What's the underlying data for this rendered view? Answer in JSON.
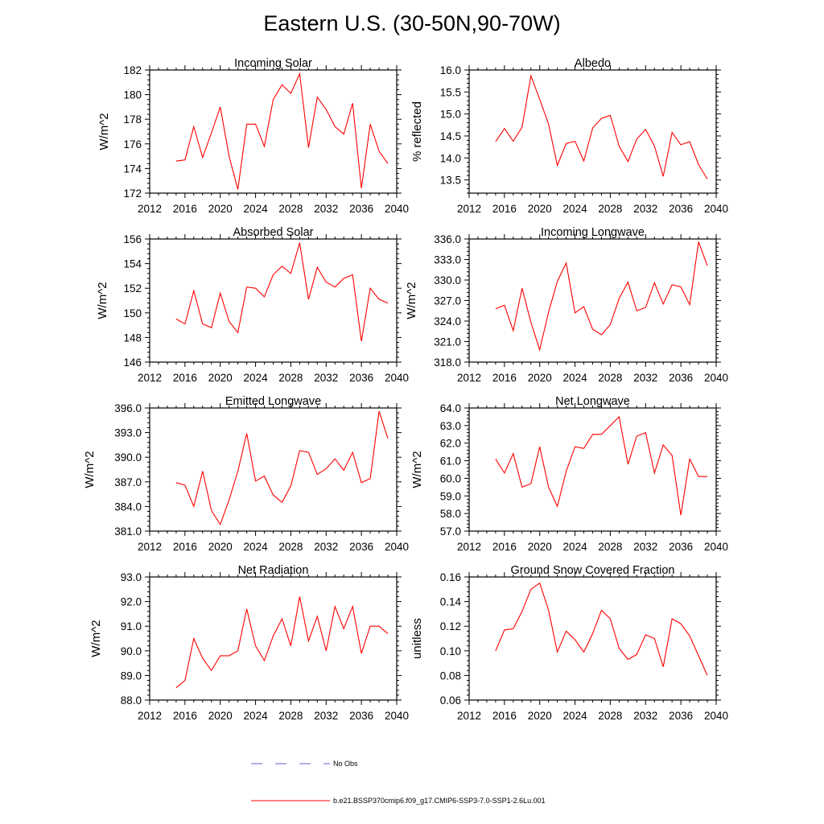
{
  "title": "Eastern U.S. (30-50N,90-70W)",
  "colors": {
    "model_line": "#ff0000",
    "obs_line": "#6060d0",
    "axis": "#000000"
  },
  "legend": {
    "obs_label": "No Obs",
    "model_label": "b.e21.BSSP370cmip6.f09_g17.CMIP6-SSP3-7.0-SSP1-2.6Lu.001"
  },
  "chart_data": [
    {
      "type": "line",
      "title": "Incoming Solar",
      "xlabel": "",
      "ylabel": "W/m^2",
      "xlim": [
        2012,
        2040
      ],
      "xticks": [
        2012,
        2016,
        2020,
        2024,
        2028,
        2032,
        2036,
        2040
      ],
      "ylim": [
        172,
        182
      ],
      "yticks": [
        "172",
        "174",
        "176",
        "178",
        "180",
        "182"
      ],
      "ytick_values": [
        172,
        174,
        176,
        178,
        180,
        182
      ],
      "x": [
        2015,
        2016,
        2017,
        2018,
        2019,
        2020,
        2021,
        2022,
        2023,
        2024,
        2025,
        2026,
        2027,
        2028,
        2029,
        2030,
        2031,
        2032,
        2033,
        2034,
        2035,
        2036,
        2037,
        2038,
        2039
      ],
      "series": [
        {
          "name": "b.e21.BSSP370cmip6.f09_g17.CMIP6-SSP3-7.0-SSP1-2.6Lu.001",
          "values": [
            174.6,
            174.7,
            177.4,
            174.9,
            176.9,
            179.0,
            175.0,
            172.3,
            177.6,
            177.6,
            175.8,
            179.6,
            180.8,
            180.1,
            181.7,
            175.7,
            179.8,
            178.8,
            177.4,
            176.8,
            179.3,
            172.4,
            177.6,
            175.4,
            174.4
          ]
        }
      ]
    },
    {
      "type": "line",
      "title": "Albedo",
      "xlabel": "",
      "ylabel": "% reflected",
      "xlim": [
        2012,
        2040
      ],
      "xticks": [
        2012,
        2016,
        2020,
        2024,
        2028,
        2032,
        2036,
        2040
      ],
      "ylim": [
        13.2,
        16.0
      ],
      "yticks": [
        "13.5",
        "14.0",
        "14.5",
        "15.0",
        "15.5",
        "16.0"
      ],
      "ytick_values": [
        13.5,
        14.0,
        14.5,
        15.0,
        15.5,
        16.0
      ],
      "x": [
        2015,
        2016,
        2017,
        2018,
        2019,
        2020,
        2021,
        2022,
        2023,
        2024,
        2025,
        2026,
        2027,
        2028,
        2029,
        2030,
        2031,
        2032,
        2033,
        2034,
        2035,
        2036,
        2037,
        2038,
        2039
      ],
      "series": [
        {
          "name": "b.e21.BSSP370cmip6.f09_g17.CMIP6-SSP3-7.0-SSP1-2.6Lu.001",
          "values": [
            14.37,
            14.67,
            14.38,
            14.7,
            15.87,
            15.33,
            14.77,
            13.83,
            14.33,
            14.38,
            13.93,
            14.68,
            14.9,
            14.97,
            14.27,
            13.92,
            14.43,
            14.65,
            14.27,
            13.58,
            14.58,
            14.3,
            14.37,
            13.85,
            13.52
          ]
        }
      ]
    },
    {
      "type": "line",
      "title": "Absorbed Solar",
      "xlabel": "",
      "ylabel": "W/m^2",
      "xlim": [
        2012,
        2040
      ],
      "xticks": [
        2012,
        2016,
        2020,
        2024,
        2028,
        2032,
        2036,
        2040
      ],
      "ylim": [
        146,
        156
      ],
      "yticks": [
        "146",
        "148",
        "150",
        "152",
        "154",
        "156"
      ],
      "ytick_values": [
        146,
        148,
        150,
        152,
        154,
        156
      ],
      "x": [
        2015,
        2016,
        2017,
        2018,
        2019,
        2020,
        2021,
        2022,
        2023,
        2024,
        2025,
        2026,
        2027,
        2028,
        2029,
        2030,
        2031,
        2032,
        2033,
        2034,
        2035,
        2036,
        2037,
        2038,
        2039
      ],
      "series": [
        {
          "name": "b.e21.BSSP370cmip6.f09_g17.CMIP6-SSP3-7.0-SSP1-2.6Lu.001",
          "values": [
            149.5,
            149.1,
            151.8,
            149.1,
            148.8,
            151.6,
            149.3,
            148.4,
            152.1,
            152.0,
            151.3,
            153.1,
            153.8,
            153.2,
            155.7,
            151.1,
            153.7,
            152.5,
            152.1,
            152.8,
            153.1,
            147.7,
            152.0,
            151.1,
            150.8
          ]
        }
      ]
    },
    {
      "type": "line",
      "title": "Incoming Longwave",
      "xlabel": "",
      "ylabel": "W/m^2",
      "xlim": [
        2012,
        2040
      ],
      "xticks": [
        2012,
        2016,
        2020,
        2024,
        2028,
        2032,
        2036,
        2040
      ],
      "ylim": [
        318,
        336
      ],
      "yticks": [
        "318.0",
        "321.0",
        "324.0",
        "327.0",
        "330.0",
        "333.0",
        "336.0"
      ],
      "ytick_values": [
        318,
        321,
        324,
        327,
        330,
        333,
        336
      ],
      "x": [
        2015,
        2016,
        2017,
        2018,
        2019,
        2020,
        2021,
        2022,
        2023,
        2024,
        2025,
        2026,
        2027,
        2028,
        2029,
        2030,
        2031,
        2032,
        2033,
        2034,
        2035,
        2036,
        2037,
        2038,
        2039
      ],
      "series": [
        {
          "name": "b.e21.BSSP370cmip6.f09_g17.CMIP6-SSP3-7.0-SSP1-2.6Lu.001",
          "values": [
            325.8,
            326.3,
            322.6,
            328.8,
            323.8,
            319.8,
            325.3,
            329.8,
            332.5,
            325.2,
            326.1,
            322.8,
            322.0,
            323.5,
            327.3,
            329.7,
            325.5,
            326.0,
            329.6,
            326.5,
            329.3,
            329.0,
            326.4,
            335.6,
            332.1
          ]
        }
      ]
    },
    {
      "type": "line",
      "title": "Emitted Longwave",
      "xlabel": "",
      "ylabel": "W/m^2",
      "xlim": [
        2012,
        2040
      ],
      "xticks": [
        2012,
        2016,
        2020,
        2024,
        2028,
        2032,
        2036,
        2040
      ],
      "ylim": [
        381,
        396
      ],
      "yticks": [
        "381.0",
        "384.0",
        "387.0",
        "390.0",
        "393.0",
        "396.0"
      ],
      "ytick_values": [
        381,
        384,
        387,
        390,
        393,
        396
      ],
      "x": [
        2015,
        2016,
        2017,
        2018,
        2019,
        2020,
        2021,
        2022,
        2023,
        2024,
        2025,
        2026,
        2027,
        2028,
        2029,
        2030,
        2031,
        2032,
        2033,
        2034,
        2035,
        2036,
        2037,
        2038,
        2039
      ],
      "series": [
        {
          "name": "b.e21.BSSP370cmip6.f09_g17.CMIP6-SSP3-7.0-SSP1-2.6Lu.001",
          "values": [
            386.9,
            386.6,
            384.0,
            388.3,
            383.5,
            381.8,
            384.8,
            388.3,
            392.9,
            387.1,
            387.7,
            385.4,
            384.5,
            386.5,
            390.8,
            390.6,
            387.9,
            388.6,
            389.8,
            388.4,
            390.6,
            386.9,
            387.4,
            395.6,
            392.3
          ]
        }
      ]
    },
    {
      "type": "line",
      "title": "Net Longwave",
      "xlabel": "",
      "ylabel": "W/m^2",
      "xlim": [
        2012,
        2040
      ],
      "xticks": [
        2012,
        2016,
        2020,
        2024,
        2028,
        2032,
        2036,
        2040
      ],
      "ylim": [
        57,
        64
      ],
      "yticks": [
        "57.0",
        "58.0",
        "59.0",
        "60.0",
        "61.0",
        "62.0",
        "63.0",
        "64.0"
      ],
      "ytick_values": [
        57,
        58,
        59,
        60,
        61,
        62,
        63,
        64
      ],
      "x": [
        2015,
        2016,
        2017,
        2018,
        2019,
        2020,
        2021,
        2022,
        2023,
        2024,
        2025,
        2026,
        2027,
        2028,
        2029,
        2030,
        2031,
        2032,
        2033,
        2034,
        2035,
        2036,
        2037,
        2038,
        2039
      ],
      "series": [
        {
          "name": "b.e21.BSSP370cmip6.f09_g17.CMIP6-SSP3-7.0-SSP1-2.6Lu.001",
          "values": [
            61.1,
            60.3,
            61.4,
            59.5,
            59.7,
            61.8,
            59.5,
            58.4,
            60.4,
            61.8,
            61.7,
            62.5,
            62.5,
            63.0,
            63.5,
            60.8,
            62.4,
            62.6,
            60.3,
            61.9,
            61.3,
            57.9,
            61.1,
            60.1,
            60.1
          ]
        }
      ]
    },
    {
      "type": "line",
      "title": "Net Radiation",
      "xlabel": "",
      "ylabel": "W/m^2",
      "xlim": [
        2012,
        2040
      ],
      "xticks": [
        2012,
        2016,
        2020,
        2024,
        2028,
        2032,
        2036,
        2040
      ],
      "ylim": [
        88,
        93
      ],
      "yticks": [
        "88.0",
        "89.0",
        "90.0",
        "91.0",
        "92.0",
        "93.0"
      ],
      "ytick_values": [
        88,
        89,
        90,
        91,
        92,
        93
      ],
      "x": [
        2015,
        2016,
        2017,
        2018,
        2019,
        2020,
        2021,
        2022,
        2023,
        2024,
        2025,
        2026,
        2027,
        2028,
        2029,
        2030,
        2031,
        2032,
        2033,
        2034,
        2035,
        2036,
        2037,
        2038,
        2039
      ],
      "series": [
        {
          "name": "b.e21.BSSP370cmip6.f09_g17.CMIP6-SSP3-7.0-SSP1-2.6Lu.001",
          "values": [
            88.5,
            88.8,
            90.5,
            89.7,
            89.2,
            89.8,
            89.8,
            90.0,
            91.7,
            90.2,
            89.6,
            90.6,
            91.3,
            90.2,
            92.2,
            90.4,
            91.4,
            90.0,
            91.8,
            90.9,
            91.8,
            89.9,
            91.0,
            91.0,
            90.7
          ]
        }
      ]
    },
    {
      "type": "line",
      "title": "Ground Snow Covered Fraction",
      "xlabel": "",
      "ylabel": "unitless",
      "xlim": [
        2012,
        2040
      ],
      "xticks": [
        2012,
        2016,
        2020,
        2024,
        2028,
        2032,
        2036,
        2040
      ],
      "ylim": [
        0.06,
        0.16
      ],
      "yticks": [
        "0.06",
        "0.08",
        "0.10",
        "0.12",
        "0.14",
        "0.16"
      ],
      "ytick_values": [
        0.06,
        0.08,
        0.1,
        0.12,
        0.14,
        0.16
      ],
      "x": [
        2015,
        2016,
        2017,
        2018,
        2019,
        2020,
        2021,
        2022,
        2023,
        2024,
        2025,
        2026,
        2027,
        2028,
        2029,
        2030,
        2031,
        2032,
        2033,
        2034,
        2035,
        2036,
        2037,
        2038,
        2039
      ],
      "series": [
        {
          "name": "b.e21.BSSP370cmip6.f09_g17.CMIP6-SSP3-7.0-SSP1-2.6Lu.001",
          "values": [
            0.1,
            0.117,
            0.118,
            0.132,
            0.15,
            0.155,
            0.133,
            0.099,
            0.116,
            0.109,
            0.099,
            0.114,
            0.133,
            0.126,
            0.102,
            0.093,
            0.097,
            0.113,
            0.11,
            0.087,
            0.126,
            0.122,
            0.112,
            0.096,
            0.08
          ]
        }
      ]
    }
  ]
}
